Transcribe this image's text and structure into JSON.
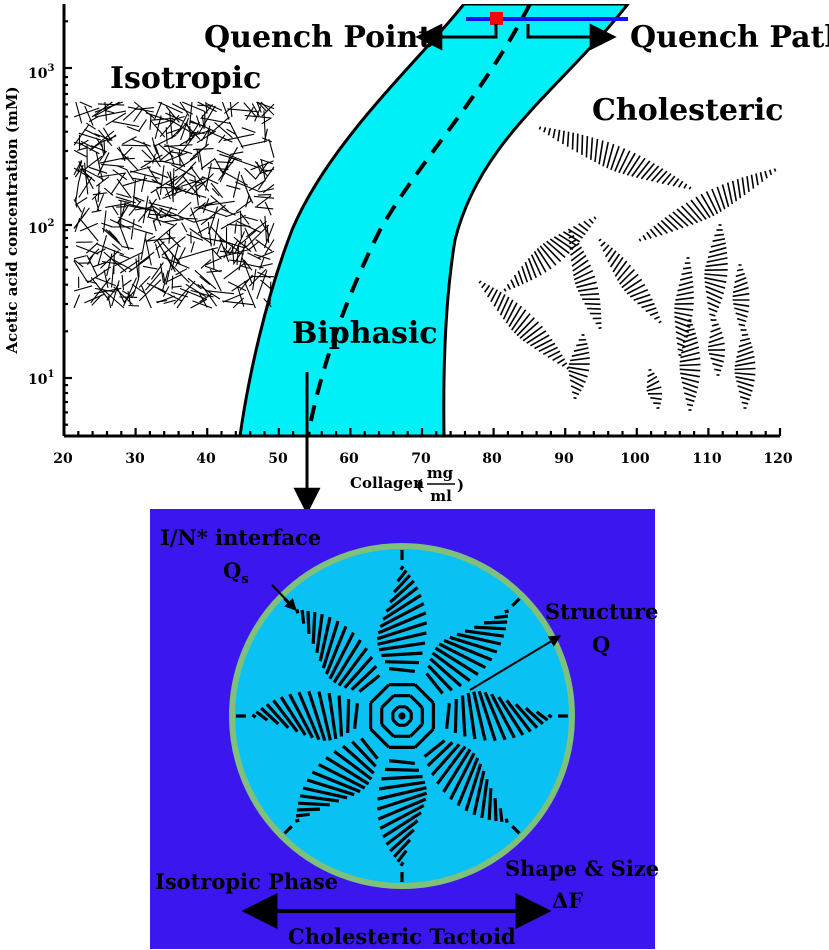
{
  "colors": {
    "band": "#00f0f8",
    "panel_bg": "#3b16ee",
    "tactoid_fill": "#09c2f3",
    "tactoid_border": "#7fc07a",
    "quench_line": "#1010ff",
    "quench_marker": "#ff0000"
  },
  "chart_data": {
    "type": "phase-diagram",
    "xlabel": "Collagen",
    "xunit_num": "mg",
    "xunit_den": "ml",
    "ylabel": "Acetic acid concentration (mM)",
    "x_ticks": [
      "20",
      "30",
      "40",
      "50",
      "60",
      "70",
      "80",
      "90",
      "100",
      "110",
      "120"
    ],
    "y_ticks": [
      {
        "base": "10",
        "exp": "1"
      },
      {
        "base": "10",
        "exp": "2"
      },
      {
        "base": "10",
        "exp": "3"
      }
    ],
    "xlim": [
      20,
      120
    ],
    "y_scale": "log",
    "regions": [
      "Isotropic",
      "Biphasic",
      "Cholesteric"
    ],
    "annotations": [
      "Quench Point",
      "Quench Path"
    ]
  },
  "labels": {
    "isotropic": "Isotropic",
    "cholesteric": "Cholesteric",
    "biphasic": "Biphasic",
    "quench_point": "Quench Point",
    "quench_path": "Quench Path",
    "interface": "I/N* interface",
    "q_s": "Q",
    "q_s_sub": "s",
    "structure": "Structure",
    "structure_q": "Q",
    "isotropic_phase": "Isotropic Phase",
    "shape_size": "Shape & Size",
    "delta_f": "ΔF",
    "cholesteric_tactoid": "Cholesteric Tactoid"
  }
}
